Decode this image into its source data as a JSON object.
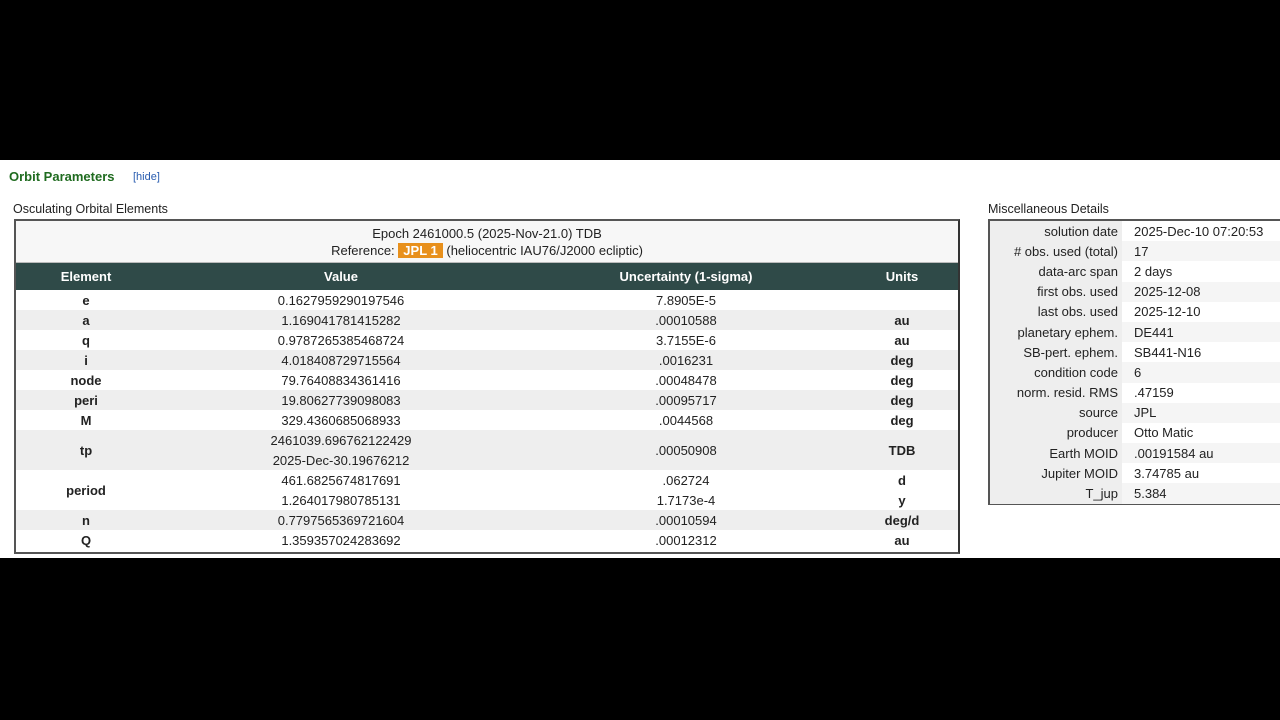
{
  "header": {
    "title": "Orbit Parameters",
    "hide_label": "[hide]"
  },
  "elements": {
    "title": "Osculating Orbital Elements",
    "epoch": "Epoch 2461000.5 (2025-Nov-21.0) TDB",
    "reference_label": "Reference:",
    "reference_badge": "JPL 1",
    "reference_frame": "(heliocentric IAU76/J2000 ecliptic)",
    "columns": [
      "Element",
      "Value",
      "Uncertainty (1-sigma)",
      "Units"
    ],
    "rows": [
      {
        "element": "e",
        "value": "0.1627959290197546",
        "unc": "7.8905E-5",
        "units": ""
      },
      {
        "element": "a",
        "value": "1.169041781415282",
        "unc": ".00010588",
        "units": "au"
      },
      {
        "element": "q",
        "value": "0.9787265385468724",
        "unc": "3.7155E-6",
        "units": "au"
      },
      {
        "element": "i",
        "value": "4.018408729715564",
        "unc": ".0016231",
        "units": "deg"
      },
      {
        "element": "node",
        "value": "79.76408834361416",
        "unc": ".00048478",
        "units": "deg"
      },
      {
        "element": "peri",
        "value": "19.80627739098083",
        "unc": ".00095717",
        "units": "deg"
      },
      {
        "element": "M",
        "value": "329.4360685068933",
        "unc": ".0044568",
        "units": "deg"
      },
      {
        "element": "tp",
        "value": "2461039.696762122429",
        "value2": "2025-Dec-30.19676212",
        "unc": ".00050908",
        "units": "TDB"
      },
      {
        "element": "period",
        "value": "461.6825674817691",
        "value2": "1.264017980785131",
        "unc": ".062724",
        "unc2": "1.7173e-4",
        "units": "d",
        "units2": "y"
      },
      {
        "element": "n",
        "value": "0.7797565369721604",
        "unc": ".00010594",
        "units": "deg/d"
      },
      {
        "element": "Q",
        "value": "1.359357024283692",
        "unc": ".00012312",
        "units": "au"
      }
    ]
  },
  "misc": {
    "title": "Miscellaneous Details",
    "rows": [
      {
        "label": "solution date",
        "value": "2025-Dec-10 07:20:53"
      },
      {
        "label": "# obs. used (total)",
        "value": "17"
      },
      {
        "label": "data-arc span",
        "value": "2 days"
      },
      {
        "label": "first obs. used",
        "value": "2025-12-08"
      },
      {
        "label": "last obs. used",
        "value": "2025-12-10"
      },
      {
        "label": "planetary ephem.",
        "value": "DE441"
      },
      {
        "label": "SB-pert. ephem.",
        "value": "SB441-N16"
      },
      {
        "label": "condition code",
        "value": "6"
      },
      {
        "label": "norm. resid. RMS",
        "value": ".47159"
      },
      {
        "label": "source",
        "value": "JPL"
      },
      {
        "label": "producer",
        "value": "Otto Matic"
      },
      {
        "label": "Earth MOID",
        "value": ".00191584 au"
      },
      {
        "label": "Jupiter MOID",
        "value": "3.74785 au"
      },
      {
        "label": "T_jup",
        "value": "5.384"
      }
    ]
  }
}
